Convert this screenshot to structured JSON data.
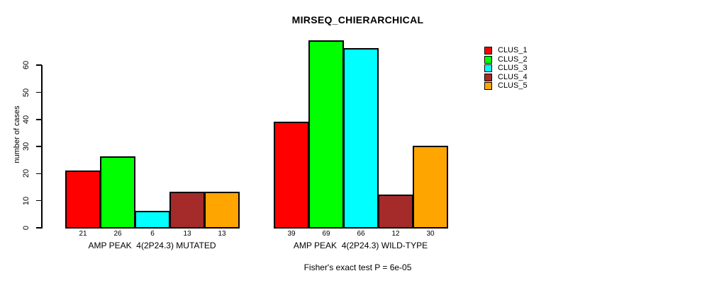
{
  "title": "MIRSEQ_CHIERARCHICAL",
  "y_axis": {
    "label": "number of cases"
  },
  "footer": "Fisher's exact test P = 6e-05",
  "legend": {
    "items": [
      {
        "label": "CLUS_1",
        "color": "#ff0000"
      },
      {
        "label": "CLUS_2",
        "color": "#00ff00"
      },
      {
        "label": "CLUS_3",
        "color": "#00ffff"
      },
      {
        "label": "CLUS_4",
        "color": "#a52a2a"
      },
      {
        "label": "CLUS_5",
        "color": "#ffa500"
      }
    ]
  },
  "chart_data": {
    "type": "bar",
    "title": "MIRSEQ_CHIERARCHICAL",
    "ylabel": "number of cases",
    "xlabel": "",
    "ylim": [
      0,
      60
    ],
    "y_ticks": [
      0,
      10,
      20,
      30,
      40,
      50,
      60
    ],
    "grid": false,
    "legend_position": "top-right",
    "bar_borders": "black",
    "background": "#ffffff",
    "categories": [
      "AMP PEAK  4(2P24.3) MUTATED",
      "AMP PEAK  4(2P24.3) WILD-TYPE"
    ],
    "series": [
      {
        "name": "CLUS_1",
        "color": "#ff0000",
        "values": [
          21,
          39
        ]
      },
      {
        "name": "CLUS_2",
        "color": "#00ff00",
        "values": [
          26,
          69
        ]
      },
      {
        "name": "CLUS_3",
        "color": "#00ffff",
        "values": [
          6,
          66
        ]
      },
      {
        "name": "CLUS_4",
        "color": "#a52a2a",
        "values": [
          13,
          12
        ]
      },
      {
        "name": "CLUS_5",
        "color": "#ffa500",
        "values": [
          13,
          30
        ]
      }
    ],
    "bar_value_labels_shown": true,
    "annotation": "Fisher's exact test P = 6e-05"
  }
}
